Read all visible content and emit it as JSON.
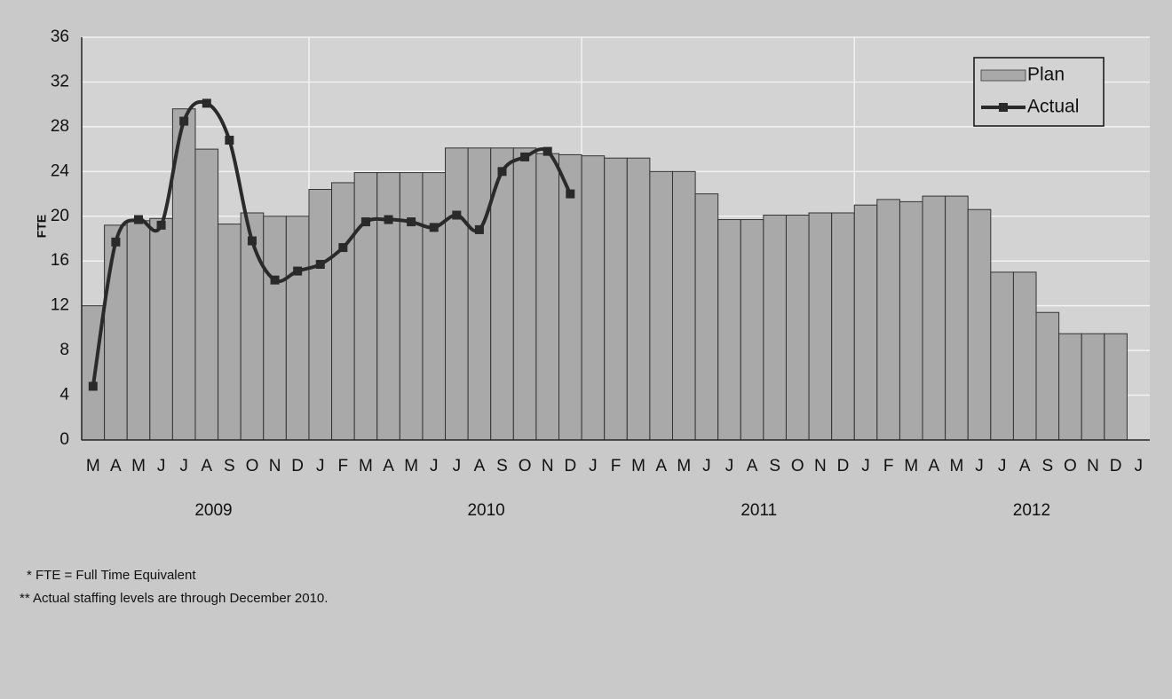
{
  "chart_data": {
    "type": "bar",
    "y_label": "FTE",
    "categories": [
      "M",
      "A",
      "M",
      "J",
      "J",
      "A",
      "S",
      "O",
      "N",
      "D",
      "J",
      "F",
      "M",
      "A",
      "M",
      "J",
      "J",
      "A",
      "S",
      "O",
      "N",
      "D",
      "J",
      "F",
      "M",
      "A",
      "M",
      "J",
      "J",
      "A",
      "S",
      "O",
      "N",
      "D",
      "J",
      "F",
      "M",
      "A",
      "M",
      "J",
      "J",
      "A",
      "S",
      "O",
      "N",
      "D",
      "J"
    ],
    "year_labels": [
      "2009",
      "2010",
      "2011",
      "2012"
    ],
    "series": [
      {
        "name": "Plan",
        "type": "bar",
        "color": "#a9a9a9",
        "values": [
          12,
          19.2,
          19.6,
          19.8,
          29.6,
          26,
          19.3,
          20.3,
          20,
          20,
          22.4,
          23,
          23.9,
          23.9,
          23.9,
          23.9,
          26.1,
          26.1,
          26.1,
          26.1,
          25.6,
          25.5,
          25.4,
          25.2,
          25.2,
          24,
          24,
          22,
          19.7,
          19.7,
          20.1,
          20.1,
          20.3,
          20.3,
          21,
          21.5,
          21.3,
          21.8,
          21.8,
          20.6,
          15,
          15,
          11.4,
          9.5,
          9.5,
          9.5,
          null
        ]
      },
      {
        "name": "Actual",
        "type": "line",
        "color": "#2a2a2a",
        "values": [
          4.8,
          17.7,
          19.7,
          19.2,
          28.5,
          30.1,
          26.8,
          17.8,
          14.3,
          15.1,
          15.7,
          17.2,
          19.5,
          19.7,
          19.5,
          19,
          20.1,
          18.8,
          24,
          25.3,
          25.8,
          22,
          null,
          null,
          null,
          null,
          null,
          null,
          null,
          null,
          null,
          null,
          null,
          null,
          null,
          null,
          null,
          null,
          null,
          null,
          null,
          null,
          null,
          null,
          null,
          null,
          null
        ]
      }
    ],
    "ylim": [
      0,
      36
    ],
    "yticks": [
      0,
      4,
      8,
      12,
      16,
      20,
      24,
      28,
      32,
      36
    ],
    "grid": true,
    "legend": "top-right",
    "notes": [
      "*  FTE = Full Time Equivalent",
      "** Actual staffing levels are through December 2010."
    ]
  }
}
